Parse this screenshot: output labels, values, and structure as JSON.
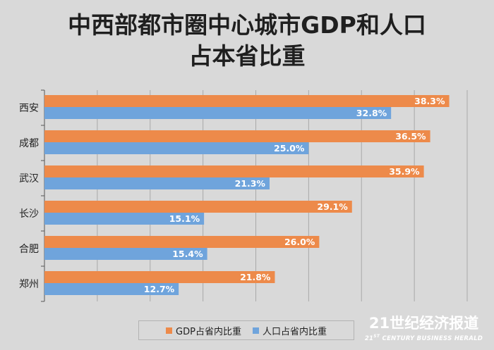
{
  "title_line1": "中西部都市圈中心城市GDP和人口",
  "title_line2": "占本省比重",
  "watermark": {
    "main": "21世纪经济报道",
    "sub_prefix": "21",
    "sub_sup": "ST",
    "sub_rest": " CENTURY BUSINESS HERALD"
  },
  "colors": {
    "gdp": "#ed8a4a",
    "population": "#6fa4dc",
    "background": "#d9d9d9"
  },
  "chart_data": {
    "type": "bar",
    "orientation": "horizontal",
    "title": "中西部都市圈中心城市GDP和人口占本省比重",
    "categories": [
      "西安",
      "成都",
      "武汉",
      "长沙",
      "合肥",
      "郑州"
    ],
    "series": [
      {
        "name": "GDP占省内比重",
        "values": [
          38.3,
          36.5,
          35.9,
          29.1,
          26.0,
          21.8
        ],
        "labels": [
          "38.3%",
          "36.5%",
          "35.9%",
          "29.1%",
          "26.0%",
          "21.8%"
        ]
      },
      {
        "name": "人口占省内比重",
        "values": [
          32.8,
          25.0,
          21.3,
          15.1,
          15.4,
          12.7
        ],
        "labels": [
          "32.8%",
          "25.0%",
          "21.3%",
          "15.1%",
          "15.4%",
          "12.7%"
        ]
      }
    ],
    "xlim": [
      0,
      40
    ],
    "grid": true,
    "legend": "bottom"
  }
}
